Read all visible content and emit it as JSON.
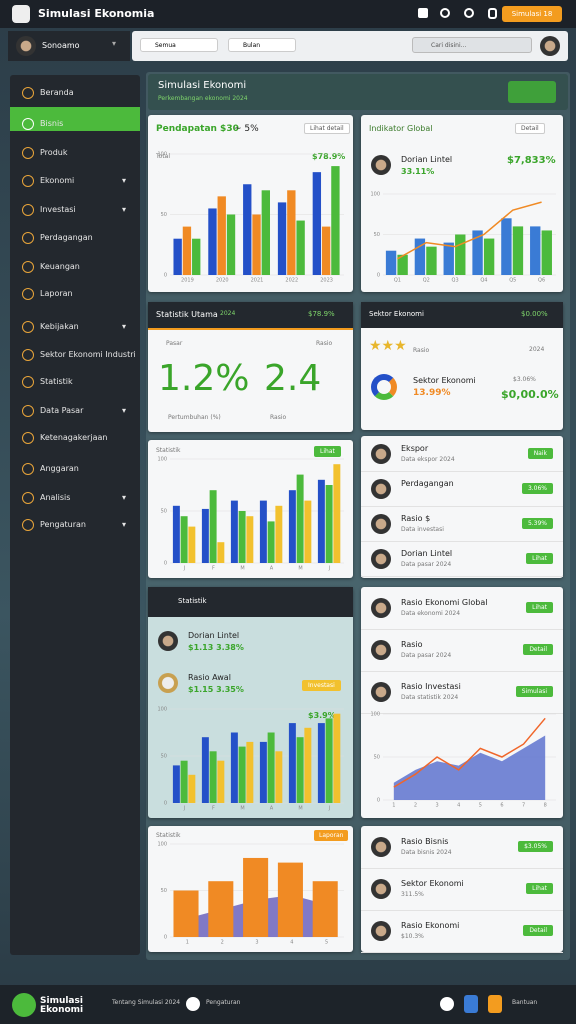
{
  "topbar": {
    "title": "Simulasi Ekonomia",
    "badge": "Simulasi 18"
  },
  "userbar": {
    "user": "Sonoamo",
    "filter1": "Semua",
    "filter2": "Bulan",
    "search": "Cari disini..."
  },
  "sidebar": [
    "Beranda",
    "Bisnis",
    "Produk",
    "Ekonomi",
    "Investasi",
    "Perdagangan",
    "Keuangan",
    "Laporan",
    "Kebijakan",
    "Sektor Ekonomi Industri",
    "Statistik",
    "Data Pasar",
    "Ketenagakerjaan",
    "Anggaran",
    "Analisis",
    "Pengaturan"
  ],
  "main": {
    "title": "Simulasi Ekonomi",
    "subtitle": "Perkembangan ekonomi 2024"
  },
  "revenue": {
    "title": "Pendapatan $30",
    "delta": "~ 5%",
    "button": "Lihat detail",
    "label": "Total",
    "value": "$78.9%"
  },
  "global": {
    "title": "Indikator Global",
    "button": "Detail",
    "name": "Dorian Lintel",
    "value": "$7,833%",
    "change": "33.11%"
  },
  "stats": {
    "title": "Statistik Utama",
    "tag": "2024",
    "right": "$78.9%",
    "left_label": "Pasar",
    "right_label": "Rasio",
    "big1": "1.2%",
    "big2": "2.4",
    "legend1": "Pertumbuhan (%)",
    "legend2": "Rasio"
  },
  "sector": {
    "title": "Sektor Ekonomi",
    "right": "$0.00%",
    "label": "Rasio",
    "sub": "2024",
    "row_title": "Sektor Ekonomi",
    "row_sub": "13.99%",
    "row_right": "$3.06%",
    "value": "$0,00.0%"
  },
  "growth": {
    "label": "Statistik",
    "button": "Lihat"
  },
  "list1": [
    {
      "title": "Ekspor",
      "sub": "Data ekspor 2024",
      "badge": "Naik"
    },
    {
      "title": "Perdagangan",
      "sub": "",
      "badge": "3.06%"
    },
    {
      "title": "Rasio $",
      "sub": "Data investasi",
      "badge": "5.39%"
    },
    {
      "title": "Dorian Lintel",
      "sub": "Data pasar 2024",
      "badge": "Lihat"
    }
  ],
  "invest": {
    "title": "Statistik",
    "r1_title": "Dorian Lintel",
    "r1_sub": "$1.13 3.38%",
    "r2_title": "Rasio Awal",
    "r2_sub": "$1.15 3.35%",
    "badge": "Investasi",
    "value": "$3.9%"
  },
  "list2": [
    {
      "title": "Rasio Ekonomi Global",
      "sub": "Data ekonomi 2024",
      "badge": "Lihat"
    },
    {
      "title": "Rasio",
      "sub": "Data pasar 2024",
      "badge": "Detail"
    },
    {
      "title": "Rasio Investasi",
      "sub": "Data statistik 2024",
      "badge": "Simulasi"
    }
  ],
  "trend": {
    "label": "Statistik",
    "button": "Laporan"
  },
  "list3": [
    {
      "title": "Rasio Bisnis",
      "sub": "Data bisnis 2024",
      "badge": "$3.05%"
    },
    {
      "title": "Sektor Ekonomi",
      "sub": "311.5%",
      "badge": "Lihat"
    },
    {
      "title": "Rasio Ekonomi",
      "sub": "$10.3%",
      "badge": "Detail"
    }
  ],
  "footer": {
    "brand": "Simulasi Ekonomi",
    "links": "Tentang Simulasi 2024",
    "action": "Pengaturan",
    "right": "Bantuan"
  },
  "charts": [
    {
      "type": "bar",
      "ylim": [
        0,
        100
      ],
      "yticks": [
        0,
        50,
        100
      ],
      "categories": [
        "2019",
        "2020",
        "2021",
        "2022",
        "2023"
      ],
      "series": [
        {
          "color": "#2450c8",
          "values": [
            30,
            55,
            75,
            60,
            85
          ]
        },
        {
          "color": "#f08a24",
          "values": [
            40,
            65,
            50,
            70,
            40
          ]
        },
        {
          "color": "#4cba3c",
          "values": [
            30,
            50,
            70,
            45,
            90
          ]
        }
      ]
    },
    {
      "type": "bar",
      "ylim": [
        0,
        100
      ],
      "yticks": [
        0,
        50,
        100
      ],
      "categories": [
        "Q1",
        "Q2",
        "Q3",
        "Q4",
        "Q5",
        "Q6"
      ],
      "series": [
        {
          "color": "#3a7bd5",
          "values": [
            30,
            45,
            40,
            55,
            70,
            60
          ],
          "kind": "bar"
        },
        {
          "color": "#4cba3c",
          "values": [
            25,
            35,
            50,
            45,
            60,
            55
          ],
          "kind": "bar"
        },
        {
          "color": "#f08a24",
          "values": [
            20,
            40,
            35,
            50,
            80,
            90
          ],
          "kind": "line"
        }
      ]
    },
    {
      "type": "bar",
      "ylim": [
        0,
        100
      ],
      "yticks": [
        0,
        50,
        100
      ],
      "categories": [
        "J",
        "F",
        "M",
        "A",
        "M",
        "J"
      ],
      "series": [
        {
          "color": "#2450c8",
          "values": [
            55,
            52,
            60,
            60,
            70,
            80
          ]
        },
        {
          "color": "#4cba3c",
          "values": [
            45,
            70,
            50,
            40,
            85,
            75
          ]
        },
        {
          "color": "#f2c12e",
          "values": [
            35,
            20,
            45,
            55,
            60,
            95
          ]
        }
      ]
    },
    {
      "type": "bar",
      "ylim": [
        0,
        100
      ],
      "yticks": [
        0,
        50,
        100
      ],
      "categories": [
        "J",
        "F",
        "M",
        "A",
        "M",
        "J"
      ],
      "series": [
        {
          "color": "#2450c8",
          "values": [
            40,
            70,
            75,
            65,
            85,
            85
          ]
        },
        {
          "color": "#4cba3c",
          "values": [
            45,
            55,
            60,
            75,
            70,
            90
          ]
        },
        {
          "color": "#f2c12e",
          "values": [
            30,
            45,
            65,
            55,
            80,
            95
          ]
        }
      ]
    },
    {
      "type": "bar",
      "ylim": [
        0,
        100
      ],
      "yticks": [
        0,
        50,
        100
      ],
      "categories": [
        "1",
        "2",
        "3",
        "4",
        "5",
        "6",
        "7",
        "8"
      ],
      "series": [
        {
          "color": "#4a62c9",
          "values": [
            20,
            35,
            45,
            40,
            55,
            45,
            60,
            75
          ],
          "kind": "area"
        },
        {
          "color": "#f0662a",
          "values": [
            15,
            30,
            50,
            35,
            60,
            50,
            65,
            95
          ],
          "kind": "line"
        }
      ]
    },
    {
      "type": "bar",
      "ylim": [
        0,
        100
      ],
      "yticks": [
        0,
        50,
        100
      ],
      "categories": [
        "1",
        "2",
        "3",
        "4",
        "5"
      ],
      "series": [
        {
          "color": "#5a4fb5",
          "values": [
            20,
            30,
            40,
            45,
            35
          ],
          "kind": "area"
        },
        {
          "color": "#f08a24",
          "values": [
            50,
            60,
            85,
            80,
            60
          ],
          "kind": "bar"
        }
      ]
    }
  ]
}
